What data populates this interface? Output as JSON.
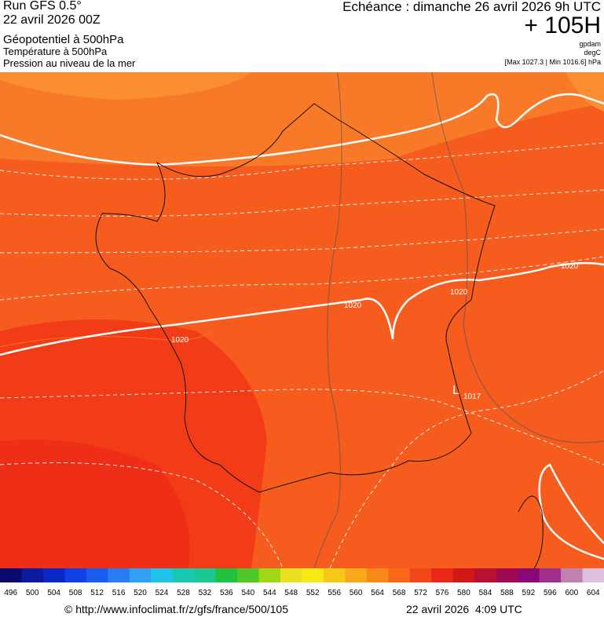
{
  "header": {
    "run": "Run GFS 0.5°",
    "date": "22 avril 2026 00Z",
    "title": "Géopotentiel à 500hPa",
    "subtitle": "Température à 500hPa",
    "subtitle2": "Pression au niveau de la mer",
    "echeance": "Echéance : dimanche 26 avril 2026 9h UTC",
    "offset": "+ 105H",
    "units": [
      "gpdam",
      "degC"
    ],
    "range": "[Max 1027.3 | Min 1016.6] hPa"
  },
  "map": {
    "labels": [
      "1020",
      "1020",
      "1020",
      "1020",
      "L",
      "1017"
    ]
  },
  "colorbar": {
    "labels": [
      496,
      500,
      504,
      508,
      512,
      516,
      520,
      524,
      528,
      532,
      536,
      540,
      544,
      548,
      552,
      556,
      560,
      564,
      568,
      572,
      576,
      580,
      584,
      588,
      592,
      596,
      600,
      604
    ],
    "colors": [
      "#0a0a6e",
      "#0c1aa0",
      "#0a28c8",
      "#1040e6",
      "#1a5cf0",
      "#2a7cf4",
      "#30a0f4",
      "#20c4e8",
      "#18c8b0",
      "#18c890",
      "#20c040",
      "#50c828",
      "#a0d818",
      "#e8e020",
      "#f8e818",
      "#f8c818",
      "#f8a818",
      "#f88818",
      "#f86818",
      "#f04818",
      "#e82818",
      "#d01818",
      "#b81030",
      "#a00850",
      "#880878",
      "#a0308c",
      "#c080b0",
      "#dcc0dc"
    ]
  },
  "footer": {
    "url": "© http://www.infoclimat.fr/z/gfs/france/500/105",
    "time": "22 avril 2026  4:09 UTC"
  }
}
